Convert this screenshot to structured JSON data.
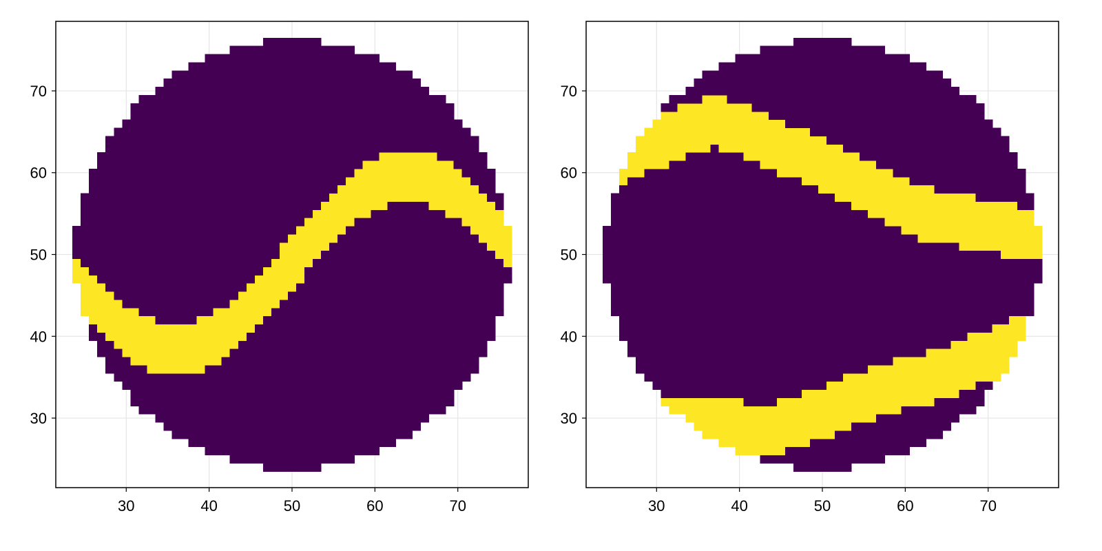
{
  "colors": {
    "background": "#ffffff",
    "low": "#440154",
    "high": "#fde725",
    "grid": "#e5e5e5",
    "frame": "#000000",
    "tick_text": "#000000"
  },
  "chart_data": [
    {
      "type": "heatmap",
      "cell_size": 1,
      "xlim": [
        21.5,
        78.5
      ],
      "ylim": [
        21.5,
        78.5
      ],
      "xticks": [
        30,
        40,
        50,
        60,
        70
      ],
      "yticks": [
        30,
        40,
        50,
        60,
        70
      ],
      "xtick_labels": [
        "30",
        "40",
        "50",
        "60",
        "70"
      ],
      "ytick_labels": [
        "30",
        "40",
        "50",
        "60",
        "70"
      ],
      "grid": true,
      "circle": {
        "center": [
          50,
          50
        ],
        "radius": 26.2
      },
      "value_range": [
        0,
        1
      ],
      "colormap": "viridis (2 levels: 0 = purple, 1 = yellow)",
      "highlight": {
        "description": "yellow band where value = 1",
        "x_range": [
          24,
          76
        ],
        "amplitude": 10.5,
        "wavelength": 56,
        "phase_x": 50,
        "center_y": 49,
        "half_width": 3.2
      }
    },
    {
      "type": "heatmap",
      "cell_size": 1,
      "xlim": [
        21.5,
        78.5
      ],
      "ylim": [
        21.5,
        78.5
      ],
      "xticks": [
        30,
        40,
        50,
        60,
        70
      ],
      "yticks": [
        30,
        40,
        50,
        60,
        70
      ],
      "xtick_labels": [
        "30",
        "40",
        "50",
        "60",
        "70"
      ],
      "ytick_labels": [
        "30",
        "40",
        "50",
        "60",
        "70"
      ],
      "grid": true,
      "circle": {
        "center": [
          50,
          50
        ],
        "radius": 26.2
      },
      "value_range": [
        0,
        1
      ],
      "colormap": "viridis (2 levels: 0 = purple, 1 = yellow)",
      "highlight": {
        "description": "two yellow bands where value = 1",
        "bands": [
          {
            "x": [
              26,
              37,
              50,
              62,
              75
            ],
            "center_y": [
              62,
              66.5,
              61,
              55,
              52.5
            ],
            "half_width": 3.2
          },
          {
            "x": [
              33,
              44,
              56,
              66,
              74
            ],
            "center_y": [
              29.5,
              28.5,
              33,
              36,
              39.5
            ],
            "half_width": 3.2
          }
        ]
      }
    }
  ]
}
